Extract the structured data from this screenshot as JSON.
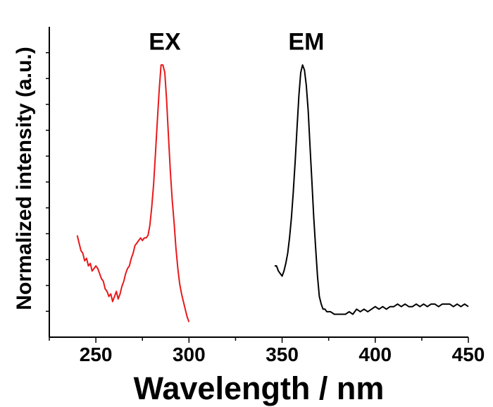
{
  "chart_data": {
    "type": "line",
    "title": "",
    "xlabel": "Wavelength / nm",
    "ylabel": "Normalized intensity (a.u.)",
    "xlim": [
      225,
      450
    ],
    "ylim": [
      -0.07,
      1.15
    ],
    "x_ticks": [
      250,
      300,
      350,
      400,
      450
    ],
    "x_minor_ticks": [
      225,
      275,
      325,
      375,
      425
    ],
    "y_ticks_labeled": false,
    "grid": false,
    "legend": "none",
    "annotations": [
      {
        "text": "EX",
        "x": 287,
        "y": 1.06
      },
      {
        "text": "EM",
        "x": 363,
        "y": 1.06
      }
    ],
    "series": [
      {
        "color": "#e8191b",
        "x": [
          240,
          241,
          242,
          243,
          244,
          245,
          246,
          247,
          248,
          249,
          250,
          251,
          252,
          253,
          254,
          255,
          256,
          257,
          258,
          259,
          260,
          261,
          262,
          263,
          264,
          265,
          266,
          267,
          268,
          269,
          270,
          271,
          272,
          273,
          274,
          275,
          276,
          277,
          278,
          279,
          280,
          281,
          282,
          283,
          284,
          285,
          286,
          287,
          288,
          289,
          290,
          291,
          292,
          293,
          294,
          295,
          296,
          297,
          298,
          299,
          300
        ],
        "y": [
          0.33,
          0.3,
          0.27,
          0.26,
          0.23,
          0.24,
          0.21,
          0.22,
          0.19,
          0.2,
          0.21,
          0.2,
          0.18,
          0.16,
          0.15,
          0.12,
          0.11,
          0.09,
          0.1,
          0.07,
          0.09,
          0.11,
          0.08,
          0.1,
          0.13,
          0.15,
          0.18,
          0.2,
          0.21,
          0.24,
          0.26,
          0.29,
          0.3,
          0.31,
          0.32,
          0.31,
          0.32,
          0.32,
          0.33,
          0.37,
          0.44,
          0.53,
          0.65,
          0.78,
          0.9,
          1.0,
          1.0,
          0.97,
          0.86,
          0.72,
          0.58,
          0.47,
          0.38,
          0.28,
          0.2,
          0.14,
          0.1,
          0.07,
          0.04,
          0.01,
          -0.01
        ]
      },
      {
        "color": "#000000",
        "x": [
          346,
          347,
          348,
          349,
          350,
          351,
          352,
          353,
          354,
          355,
          356,
          357,
          358,
          359,
          360,
          361,
          362,
          363,
          364,
          365,
          366,
          367,
          368,
          369,
          370,
          371,
          372,
          373,
          374,
          375,
          376,
          378,
          380,
          382,
          384,
          386,
          388,
          390,
          392,
          394,
          396,
          398,
          400,
          402,
          404,
          406,
          408,
          410,
          412,
          414,
          416,
          418,
          420,
          422,
          424,
          426,
          428,
          430,
          432,
          434,
          436,
          438,
          440,
          442,
          444,
          446,
          448,
          450
        ],
        "y": [
          0.21,
          0.21,
          0.19,
          0.18,
          0.17,
          0.19,
          0.22,
          0.26,
          0.32,
          0.4,
          0.5,
          0.62,
          0.75,
          0.88,
          0.97,
          1.0,
          0.98,
          0.92,
          0.82,
          0.68,
          0.54,
          0.4,
          0.28,
          0.17,
          0.09,
          0.06,
          0.04,
          0.04,
          0.03,
          0.03,
          0.03,
          0.02,
          0.02,
          0.02,
          0.02,
          0.03,
          0.02,
          0.04,
          0.03,
          0.04,
          0.03,
          0.04,
          0.05,
          0.04,
          0.05,
          0.04,
          0.05,
          0.05,
          0.06,
          0.05,
          0.06,
          0.05,
          0.05,
          0.06,
          0.05,
          0.06,
          0.05,
          0.06,
          0.06,
          0.05,
          0.06,
          0.06,
          0.06,
          0.05,
          0.06,
          0.05,
          0.06,
          0.05
        ]
      }
    ]
  }
}
